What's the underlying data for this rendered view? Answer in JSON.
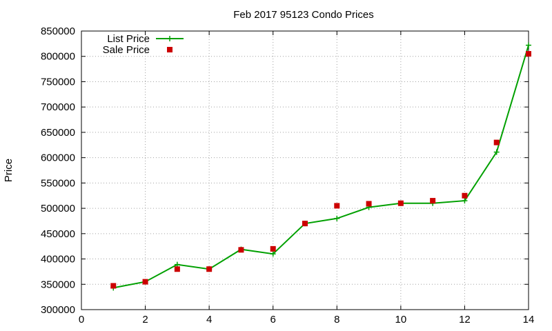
{
  "chart_data": {
    "type": "line",
    "title": "Feb 2017 95123 Condo Prices",
    "xlabel": "",
    "ylabel": "Price",
    "xlim": [
      0,
      14
    ],
    "ylim": [
      300000,
      850000
    ],
    "xticks": [
      0,
      2,
      4,
      6,
      8,
      10,
      12,
      14
    ],
    "yticks": [
      300000,
      350000,
      400000,
      450000,
      500000,
      550000,
      600000,
      650000,
      700000,
      750000,
      800000,
      850000
    ],
    "grid": true,
    "legend_position": "top-left",
    "series": [
      {
        "name": "List Price",
        "style": "line-with-plus-markers",
        "color": "#00a000",
        "points": [
          [
            1,
            343000
          ],
          [
            2,
            355000
          ],
          [
            3,
            389000
          ],
          [
            4,
            380000
          ],
          [
            5,
            419000
          ],
          [
            6,
            410000
          ],
          [
            7,
            470000
          ],
          [
            8,
            480000
          ],
          [
            9,
            502000
          ],
          [
            10,
            510000
          ],
          [
            11,
            510000
          ],
          [
            12,
            515000
          ],
          [
            13,
            611000
          ],
          [
            14,
            822000
          ]
        ]
      },
      {
        "name": "Sale Price",
        "style": "square-markers",
        "color": "#cc0000",
        "points": [
          [
            1,
            347000
          ],
          [
            2,
            355000
          ],
          [
            3,
            380000
          ],
          [
            4,
            380000
          ],
          [
            5,
            418000
          ],
          [
            6,
            420000
          ],
          [
            7,
            470000
          ],
          [
            8,
            505000
          ],
          [
            9,
            509000
          ],
          [
            10,
            510000
          ],
          [
            11,
            515000
          ],
          [
            12,
            525000
          ],
          [
            13,
            630000
          ],
          [
            14,
            805000
          ]
        ]
      }
    ]
  }
}
